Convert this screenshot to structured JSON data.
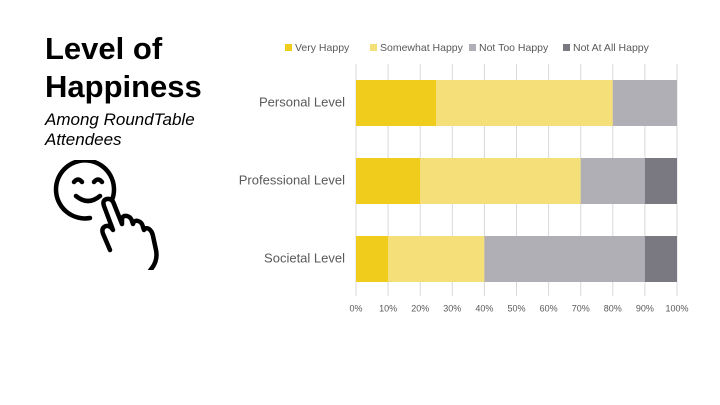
{
  "title": "Level of Happiness",
  "subtitle": "Among RoundTable Attendees",
  "chart_data": {
    "type": "stacked-bar-horizontal",
    "categories": [
      "Personal Level",
      "Professional Level",
      "Societal Level"
    ],
    "series": [
      {
        "name": "Very Happy",
        "color": "#f0cc1c",
        "values": [
          25,
          20,
          10
        ]
      },
      {
        "name": "Somewhat Happy",
        "color": "#f5df78",
        "values": [
          55,
          50,
          30
        ]
      },
      {
        "name": "Not Too Happy",
        "color": "#b0afb5",
        "values": [
          20,
          20,
          50
        ]
      },
      {
        "name": "Not At All Happy",
        "color": "#7a7981",
        "values": [
          0,
          10,
          10
        ]
      }
    ],
    "xlim": [
      0,
      100
    ],
    "xticks": [
      {
        "value": 0,
        "label": "0%"
      },
      {
        "value": 10,
        "label": "10%"
      },
      {
        "value": 20,
        "label": "20%"
      },
      {
        "value": 30,
        "label": "30%"
      },
      {
        "value": 40,
        "label": "40%"
      },
      {
        "value": 50,
        "label": "50%"
      },
      {
        "value": 60,
        "label": "60%"
      },
      {
        "value": 70,
        "label": "70%"
      },
      {
        "value": 80,
        "label": "80%"
      },
      {
        "value": 90,
        "label": "90%"
      },
      {
        "value": 100,
        "label": "100%"
      }
    ],
    "grid": true,
    "legend": "top"
  }
}
